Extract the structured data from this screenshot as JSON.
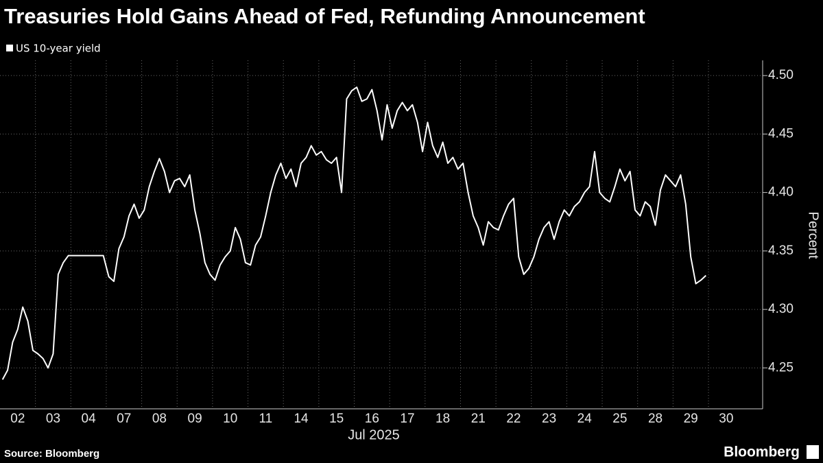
{
  "chart_data": {
    "type": "line",
    "title": "Treasuries Hold Gains Ahead of Fed, Refunding Announcement",
    "x_label": "Jul 2025",
    "y_label": "Percent",
    "source": "Source: Bloomberg",
    "logo": "Bloomberg",
    "categories": [
      "02",
      "03",
      "04",
      "07",
      "08",
      "09",
      "10",
      "11",
      "14",
      "15",
      "16",
      "17",
      "18",
      "21",
      "22",
      "23",
      "24",
      "25",
      "28",
      "29",
      "30"
    ],
    "series": [
      {
        "name": "US 10-year yield",
        "color": "#ffffff",
        "values": [
          [
            4.24,
            4.248,
            4.272,
            4.283,
            4.302,
            4.29,
            4.265
          ],
          [
            4.262,
            4.258,
            4.25,
            4.262,
            4.33,
            4.34,
            4.346
          ],
          [
            4.346,
            4.346,
            4.346,
            4.346,
            4.346,
            4.346
          ],
          [
            4.328,
            4.324,
            4.352,
            4.362,
            4.38,
            4.39,
            4.378
          ],
          [
            4.385,
            4.405,
            4.418,
            4.429,
            4.418,
            4.4,
            4.41
          ],
          [
            4.412,
            4.405,
            4.415,
            4.385,
            4.365,
            4.34,
            4.33
          ],
          [
            4.325,
            4.338,
            4.345,
            4.35,
            4.37,
            4.36,
            4.34
          ],
          [
            4.338,
            4.355,
            4.362,
            4.38,
            4.4,
            4.415,
            4.425
          ],
          [
            4.412,
            4.42,
            4.405,
            4.425,
            4.43,
            4.44,
            4.432
          ],
          [
            4.435,
            4.428,
            4.425,
            4.43,
            4.4,
            4.48,
            4.487
          ],
          [
            4.49,
            4.478,
            4.48,
            4.488,
            4.47,
            4.445,
            4.475
          ],
          [
            4.455,
            4.47,
            4.477,
            4.47,
            4.475,
            4.46,
            4.435
          ],
          [
            4.46,
            4.44,
            4.43,
            4.443,
            4.425,
            4.43,
            4.42
          ],
          [
            4.425,
            4.4,
            4.38,
            4.37,
            4.355,
            4.375,
            4.37
          ],
          [
            4.368,
            4.38,
            4.39,
            4.395,
            4.345,
            4.33,
            4.335
          ],
          [
            4.345,
            4.36,
            4.37,
            4.375,
            4.36,
            4.375,
            4.385
          ],
          [
            4.38,
            4.388,
            4.392,
            4.4,
            4.405,
            4.435,
            4.4
          ],
          [
            4.395,
            4.392,
            4.405,
            4.42,
            4.41,
            4.418,
            4.385
          ],
          [
            4.38,
            4.392,
            4.388,
            4.372,
            4.402,
            4.415,
            4.41
          ],
          [
            4.405,
            4.415,
            4.39,
            4.345,
            4.322,
            4.325,
            4.329
          ],
          null
        ]
      }
    ],
    "ylim": [
      4.215,
      4.513
    ],
    "yticks": [
      4.25,
      {
        "value": 4.3,
        "label": "4.30"
      },
      4.35,
      {
        "value": 4.4,
        "label": "4.40"
      },
      4.45,
      {
        "value": 4.5,
        "label": "4.50"
      }
    ],
    "grid": true,
    "y_axis_side": "right"
  }
}
